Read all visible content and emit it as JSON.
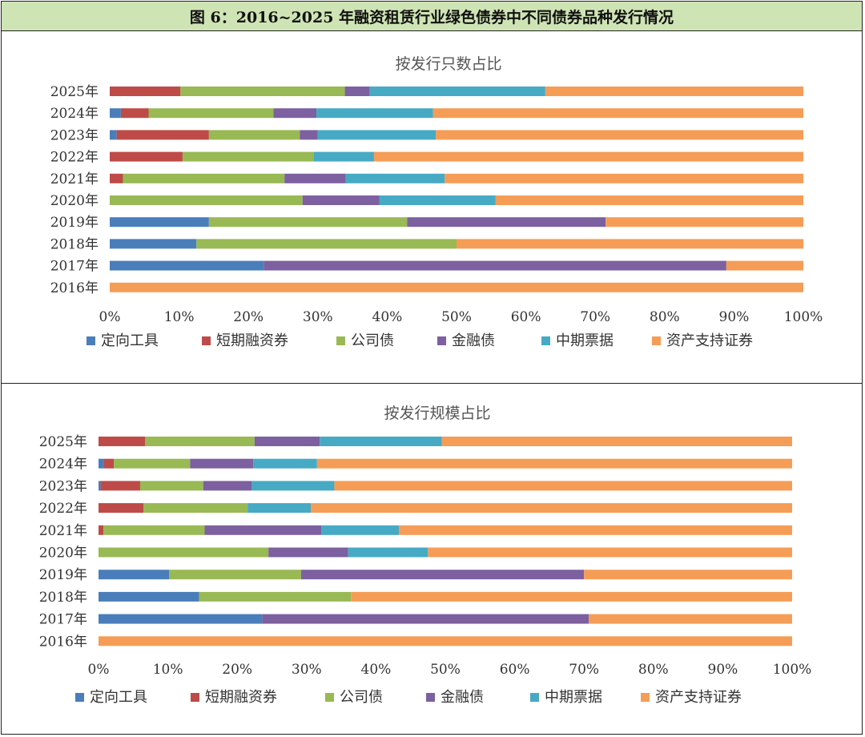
{
  "header": {
    "title": "图 6：2016~2025 年融资租赁行业绿色债券中不同债券品种发行情况"
  },
  "colors": {
    "定向工具": "#4a7ebb",
    "短期融资券": "#be4b48",
    "公司债": "#98b954",
    "金融债": "#7d60a0",
    "中期票据": "#46aac5",
    "资产支持证券": "#f59d56"
  },
  "chart_data": [
    {
      "type": "bar",
      "orientation": "horizontal",
      "stacked": true,
      "title": "按发行只数占比",
      "categories": [
        "2025年",
        "2024年",
        "2023年",
        "2022年",
        "2021年",
        "2020年",
        "2019年",
        "2018年",
        "2017年",
        "2016年"
      ],
      "xlim": [
        0,
        100
      ],
      "xticks": [
        "0%",
        "10%",
        "20%",
        "30%",
        "40%",
        "50%",
        "60%",
        "70%",
        "80%",
        "90%",
        "100%"
      ],
      "legend_position": "bottom",
      "series": [
        {
          "name": "定向工具",
          "values": [
            0,
            1.6,
            1.0,
            0,
            0,
            0,
            14.3,
            12.5,
            22.2,
            0
          ]
        },
        {
          "name": "短期融资券",
          "values": [
            10.2,
            4.0,
            13.3,
            10.5,
            1.9,
            0,
            0,
            0,
            0,
            0
          ]
        },
        {
          "name": "公司债",
          "values": [
            23.7,
            18.0,
            13.1,
            18.9,
            23.3,
            27.8,
            28.6,
            37.5,
            0,
            0
          ]
        },
        {
          "name": "金融债",
          "values": [
            3.6,
            6.2,
            2.6,
            0,
            8.8,
            11.1,
            28.6,
            0,
            66.7,
            0
          ]
        },
        {
          "name": "中期票据",
          "values": [
            25.3,
            16.8,
            17.0,
            8.7,
            14.3,
            16.7,
            0,
            0,
            0,
            0
          ]
        },
        {
          "name": "资产支持证券",
          "values": [
            37.2,
            53.4,
            53.0,
            61.9,
            51.7,
            44.4,
            28.5,
            50.0,
            11.1,
            100
          ]
        }
      ]
    },
    {
      "type": "bar",
      "orientation": "horizontal",
      "stacked": true,
      "title": "按发行规模占比",
      "categories": [
        "2025年",
        "2024年",
        "2023年",
        "2022年",
        "2021年",
        "2020年",
        "2019年",
        "2018年",
        "2017年",
        "2016年"
      ],
      "xlim": [
        0,
        100
      ],
      "xticks": [
        "0%",
        "10%",
        "20%",
        "30%",
        "40%",
        "50%",
        "60%",
        "70%",
        "80%",
        "90%",
        "100%"
      ],
      "legend_position": "bottom",
      "series": [
        {
          "name": "定向工具",
          "values": [
            0,
            0.8,
            0.3,
            0,
            0,
            0,
            10.2,
            14.5,
            23.6,
            0
          ]
        },
        {
          "name": "短期融资券",
          "values": [
            6.7,
            1.4,
            5.7,
            6.5,
            0.7,
            0,
            0,
            0,
            0,
            0
          ]
        },
        {
          "name": "公司债",
          "values": [
            15.8,
            11.0,
            9.1,
            15.0,
            14.6,
            24.5,
            19.0,
            21.9,
            0,
            0
          ]
        },
        {
          "name": "金融债",
          "values": [
            9.4,
            9.1,
            7.0,
            0,
            16.8,
            11.5,
            40.8,
            0,
            47.1,
            0
          ]
        },
        {
          "name": "中期票据",
          "values": [
            17.6,
            9.2,
            11.9,
            9.1,
            11.2,
            11.5,
            0,
            0,
            0,
            0
          ]
        },
        {
          "name": "资产支持证券",
          "values": [
            50.5,
            68.5,
            66.0,
            69.4,
            56.7,
            52.5,
            30.0,
            63.6,
            29.3,
            100
          ]
        }
      ]
    }
  ]
}
